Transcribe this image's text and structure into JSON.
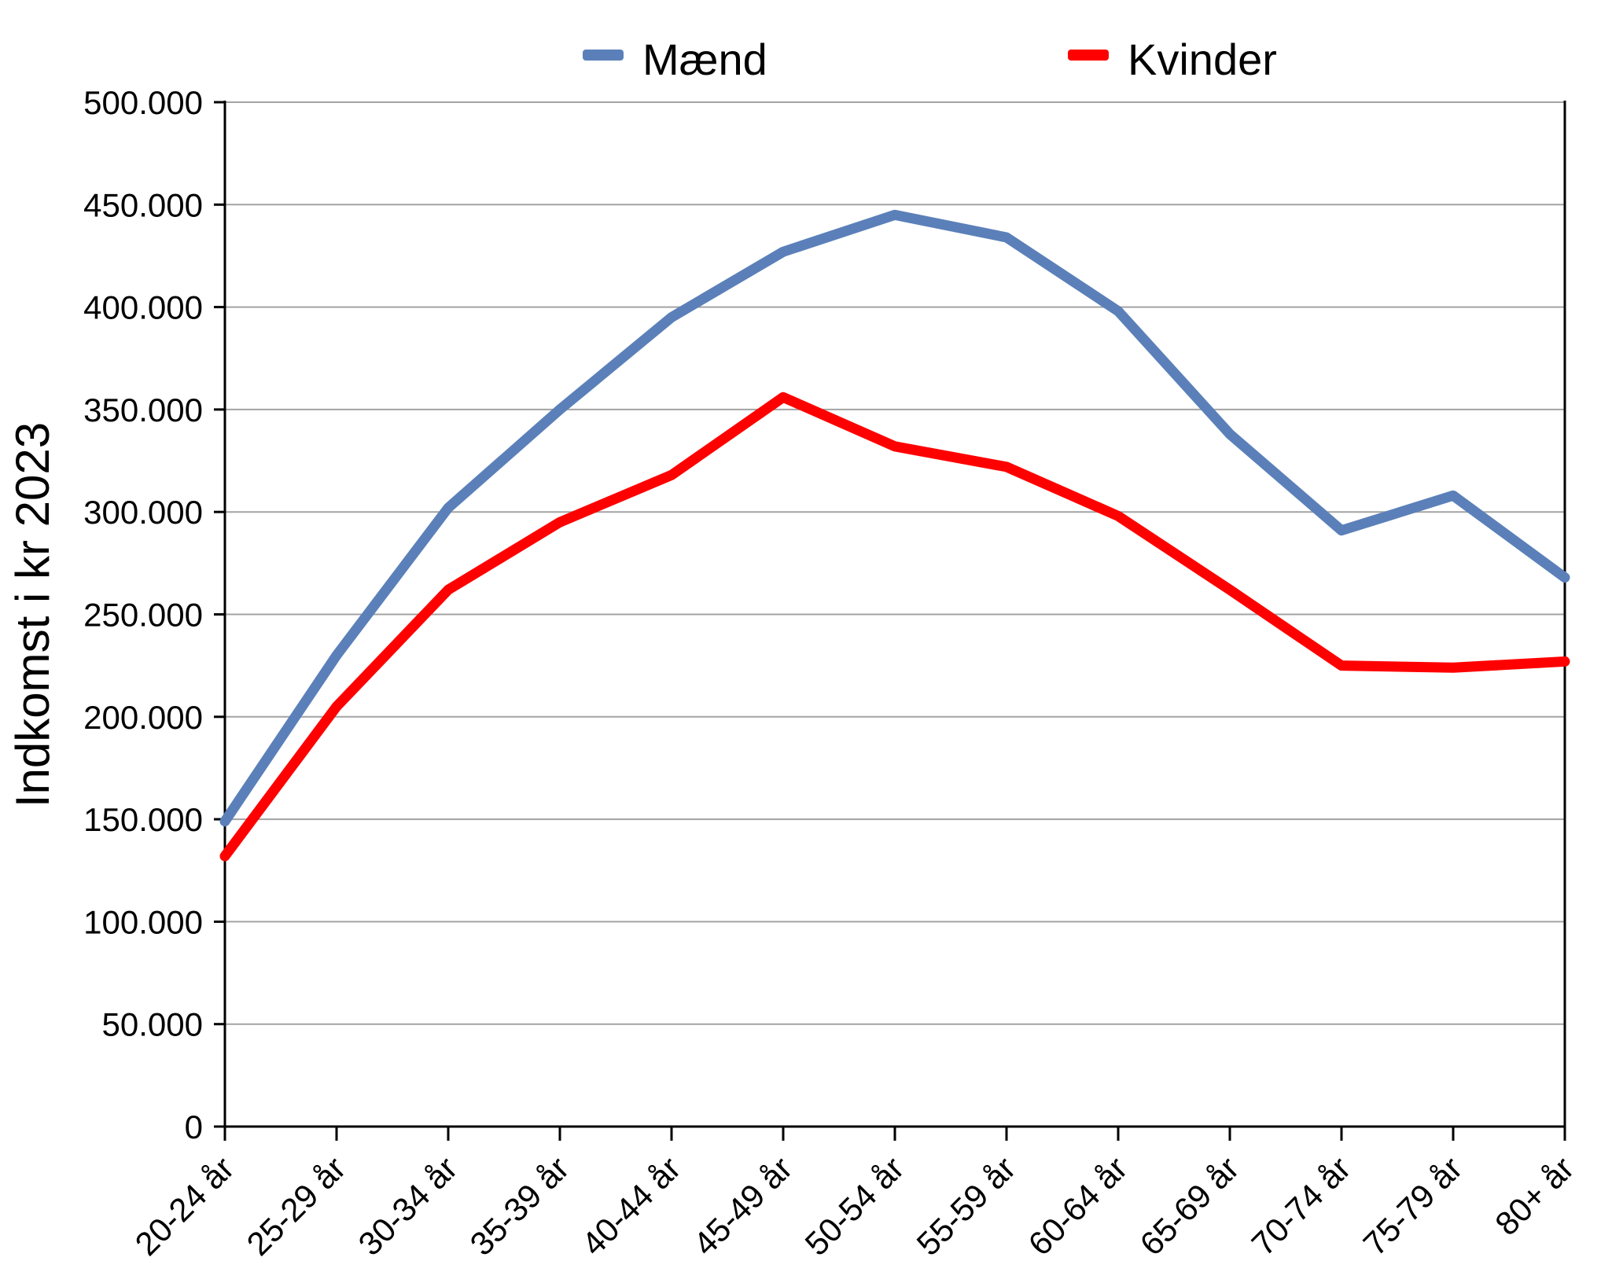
{
  "chart_data": {
    "type": "line",
    "categories": [
      "20-24 år",
      "25-29 år",
      "30-34 år",
      "35-39 år",
      "40-44 år",
      "45-49 år",
      "50-54 år",
      "55-59 år",
      "60-64 år",
      "65-69 år",
      "70-74 år",
      "75-79 år",
      "80+ år"
    ],
    "series": [
      {
        "name": "Mænd",
        "color": "#5B80B9",
        "values": [
          149000,
          230000,
          302000,
          350000,
          395000,
          427000,
          445000,
          434000,
          398000,
          338000,
          291000,
          308000,
          268000
        ]
      },
      {
        "name": "Kvinder",
        "color": "#FF0000",
        "values": [
          132000,
          205000,
          262000,
          295000,
          318000,
          356000,
          332000,
          322000,
          298000,
          262000,
          225000,
          224000,
          227000
        ]
      }
    ],
    "title": "",
    "xlabel": "",
    "ylabel": "Indkomst i kr 2023",
    "ylim": [
      0,
      500000
    ],
    "ytick_step": 50000,
    "ytick_labels": [
      "0",
      "50.000",
      "100.000",
      "150.000",
      "200.000",
      "250.000",
      "300.000",
      "350.000",
      "400.000",
      "450.000",
      "500.000"
    ],
    "grid": true,
    "legend_position": "top"
  },
  "style": {
    "grid_color": "#A3A3A3",
    "axis_color": "#000000",
    "text_color": "#000000"
  }
}
